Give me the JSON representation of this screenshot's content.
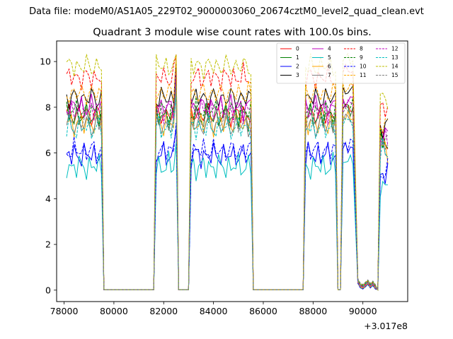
{
  "chart_data": {
    "type": "line",
    "suptitle": "Data file: modeM0/AS1A05_229T02_9000003060_20674cztM0_level2_quad_clean.evt",
    "title": "Quadrant 3 module wise count rates with 100.0s bins.",
    "xlabel": "",
    "ylabel": "",
    "x_offset_label": "+3.017e8",
    "xlim": [
      77700,
      91800
    ],
    "ylim": [
      -0.5,
      10.9
    ],
    "x_ticks": [
      78000,
      80000,
      82000,
      84000,
      86000,
      88000,
      90000
    ],
    "x_tick_labels": [
      "78000",
      "80000",
      "82000",
      "84000",
      "86000",
      "88000",
      "90000"
    ],
    "y_ticks": [
      0,
      2,
      4,
      6,
      8,
      10
    ],
    "y_tick_labels": [
      "0",
      "2",
      "4",
      "6",
      "8",
      "10"
    ],
    "grid": false,
    "legend_position": "top-right",
    "bin_seconds": 100,
    "segments": [
      {
        "start": 78100,
        "end": 79500,
        "phase": 0.0
      },
      {
        "start": 81700,
        "end": 82500,
        "phase": 1.3
      },
      {
        "start": 83100,
        "end": 85500,
        "phase": 2.6
      },
      {
        "start": 87700,
        "end": 88900,
        "phase": 3.9
      },
      {
        "start": 89200,
        "end": 89600,
        "phase": 5.2
      },
      {
        "start": 90700,
        "end": 91000,
        "phase": 6.5
      }
    ],
    "low_points": [
      {
        "x": 89800,
        "y": 0.3
      },
      {
        "x": 89900,
        "y": 0.1
      },
      {
        "x": 90000,
        "y": 0.05
      },
      {
        "x": 90100,
        "y": 0.15
      },
      {
        "x": 90200,
        "y": 0.25
      },
      {
        "x": 90300,
        "y": 0.1
      },
      {
        "x": 90400,
        "y": 0.2
      },
      {
        "x": 90500,
        "y": 0.05
      }
    ],
    "series": [
      {
        "name": "0",
        "color": "#ff0000",
        "dash": "solid",
        "level": 7.7
      },
      {
        "name": "1",
        "color": "#008000",
        "dash": "solid",
        "level": 7.6
      },
      {
        "name": "2",
        "color": "#0000ff",
        "dash": "solid",
        "level": 5.9
      },
      {
        "name": "3",
        "color": "#000000",
        "dash": "solid",
        "level": 8.4
      },
      {
        "name": "4",
        "color": "#bf00bf",
        "dash": "solid",
        "level": 8.0
      },
      {
        "name": "5",
        "color": "#00bfbf",
        "dash": "solid",
        "level": 5.4
      },
      {
        "name": "6",
        "color": "#ffa500",
        "dash": "solid",
        "level": 7.3
      },
      {
        "name": "7",
        "color": "#808080",
        "dash": "solid",
        "level": 7.2
      },
      {
        "name": "8",
        "color": "#ff0000",
        "dash": "dashed",
        "level": 9.3
      },
      {
        "name": "9",
        "color": "#008000",
        "dash": "dashed",
        "level": 7.8
      },
      {
        "name": "10",
        "color": "#0000ff",
        "dash": "dashed",
        "level": 6.1
      },
      {
        "name": "11",
        "color": "#ffa500",
        "dash": "dashed",
        "level": 8.6
      },
      {
        "name": "12",
        "color": "#bf00bf",
        "dash": "dashed",
        "level": 7.9
      },
      {
        "name": "13",
        "color": "#00bfbf",
        "dash": "dashed",
        "level": 7.1
      },
      {
        "name": "14",
        "color": "#bfbf00",
        "dash": "dashed",
        "level": 9.8
      },
      {
        "name": "15",
        "color": "#808080",
        "dash": "dashed",
        "level": 7.5
      }
    ]
  }
}
